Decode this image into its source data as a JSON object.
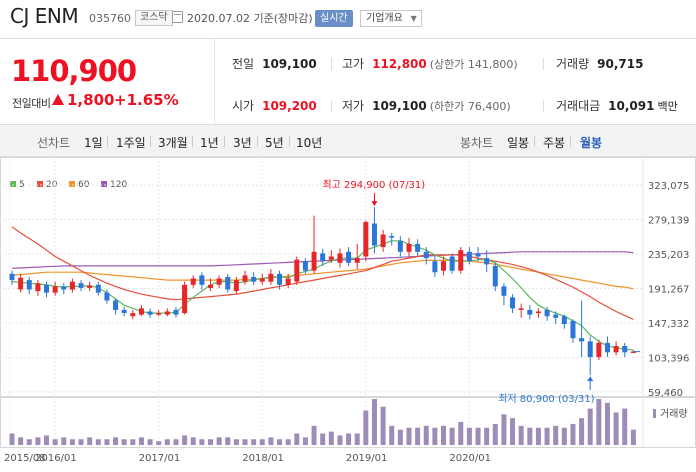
{
  "header": {
    "name": "CJ ENM",
    "code": "035760",
    "market": "코스닥",
    "date": "2020.07.02 기준(장마감)",
    "realtime": "실시간",
    "overview": "기업개요"
  },
  "price": {
    "current": "110,900",
    "change_label": "전일대비",
    "change": "1,800",
    "percent": "+1.65%",
    "prev_label": "전일",
    "prev": "109,100",
    "high_label": "고가",
    "high": "112,800",
    "upper_limit": "(상한가 141,800)",
    "volume_label": "거래량",
    "volume": "90,715",
    "open_label": "시가",
    "open": "109,200",
    "low_label": "저가",
    "low": "109,100",
    "lower_limit": "(하한가 76,400)",
    "amount_label": "거래대금",
    "amount": "10,091",
    "amount_unit": "백만"
  },
  "tabs": {
    "line_label": "선차트",
    "line_periods": [
      "1일",
      "1주일",
      "3개월",
      "1년",
      "3년",
      "5년",
      "10년"
    ],
    "candle_label": "봉차트",
    "candle_periods": [
      "일봉",
      "주봉",
      "월봉"
    ],
    "active_candle": "월봉"
  },
  "colors": {
    "up": "#e8262a",
    "down": "#2b76d6",
    "ma5": "#5cb85c",
    "ma20": "#e55039",
    "ma60": "#f0932b",
    "ma120": "#9b59b6"
  },
  "chart_data": {
    "type": "candlestick",
    "legend": [
      "5",
      "20",
      "60",
      "120"
    ],
    "y_ticks": [
      "323,075",
      "279,139",
      "235,203",
      "191,267",
      "147,332",
      "103,396",
      "59,460"
    ],
    "x_ticks": [
      "2015/08",
      "2016/01",
      "2017/01",
      "2018/01",
      "2019/01",
      "2020/01"
    ],
    "max_annotation": "최고 294,900 (07/31)",
    "min_annotation": "최저 80,900 (03/31)",
    "volume_label": "거래량",
    "candles": [
      {
        "o": 210000,
        "c": 202000,
        "h": 214000,
        "l": 196000
      },
      {
        "o": 190000,
        "c": 205000,
        "h": 210000,
        "l": 186000
      },
      {
        "o": 202000,
        "c": 190000,
        "h": 206000,
        "l": 184000
      },
      {
        "o": 188000,
        "c": 198000,
        "h": 202000,
        "l": 182000
      },
      {
        "o": 196000,
        "c": 186000,
        "h": 200000,
        "l": 180000
      },
      {
        "o": 186000,
        "c": 194000,
        "h": 200000,
        "l": 182000
      },
      {
        "o": 194000,
        "c": 190000,
        "h": 198000,
        "l": 184000
      },
      {
        "o": 190000,
        "c": 200000,
        "h": 204000,
        "l": 186000
      },
      {
        "o": 198000,
        "c": 192000,
        "h": 202000,
        "l": 188000
      },
      {
        "o": 192000,
        "c": 195000,
        "h": 200000,
        "l": 188000
      },
      {
        "o": 196000,
        "c": 186000,
        "h": 200000,
        "l": 182000
      },
      {
        "o": 186000,
        "c": 176000,
        "h": 190000,
        "l": 172000
      },
      {
        "o": 176000,
        "c": 164000,
        "h": 178000,
        "l": 158000
      },
      {
        "o": 164000,
        "c": 160000,
        "h": 168000,
        "l": 156000
      },
      {
        "o": 156000,
        "c": 160000,
        "h": 164000,
        "l": 152000
      },
      {
        "o": 158000,
        "c": 166000,
        "h": 170000,
        "l": 156000
      },
      {
        "o": 162000,
        "c": 158000,
        "h": 166000,
        "l": 154000
      },
      {
        "o": 158000,
        "c": 160000,
        "h": 164000,
        "l": 156000
      },
      {
        "o": 158000,
        "c": 162000,
        "h": 166000,
        "l": 156000
      },
      {
        "o": 164000,
        "c": 158000,
        "h": 168000,
        "l": 154000
      },
      {
        "o": 160000,
        "c": 196000,
        "h": 200000,
        "l": 158000
      },
      {
        "o": 196000,
        "c": 204000,
        "h": 208000,
        "l": 192000
      },
      {
        "o": 208000,
        "c": 196000,
        "h": 212000,
        "l": 190000
      },
      {
        "o": 192000,
        "c": 196000,
        "h": 204000,
        "l": 188000
      },
      {
        "o": 196000,
        "c": 204000,
        "h": 208000,
        "l": 192000
      },
      {
        "o": 206000,
        "c": 190000,
        "h": 210000,
        "l": 186000
      },
      {
        "o": 188000,
        "c": 202000,
        "h": 206000,
        "l": 184000
      },
      {
        "o": 200000,
        "c": 208000,
        "h": 214000,
        "l": 196000
      },
      {
        "o": 206000,
        "c": 200000,
        "h": 212000,
        "l": 196000
      },
      {
        "o": 200000,
        "c": 204000,
        "h": 210000,
        "l": 196000
      },
      {
        "o": 200000,
        "c": 210000,
        "h": 216000,
        "l": 196000
      },
      {
        "o": 210000,
        "c": 196000,
        "h": 214000,
        "l": 190000
      },
      {
        "o": 196000,
        "c": 204000,
        "h": 210000,
        "l": 192000
      },
      {
        "o": 200000,
        "c": 228000,
        "h": 232000,
        "l": 196000
      },
      {
        "o": 226000,
        "c": 214000,
        "h": 230000,
        "l": 210000
      },
      {
        "o": 214000,
        "c": 238000,
        "h": 284000,
        "l": 210000
      },
      {
        "o": 236000,
        "c": 226000,
        "h": 242000,
        "l": 220000
      },
      {
        "o": 228000,
        "c": 232000,
        "h": 240000,
        "l": 224000
      },
      {
        "o": 224000,
        "c": 236000,
        "h": 242000,
        "l": 218000
      },
      {
        "o": 238000,
        "c": 224000,
        "h": 244000,
        "l": 220000
      },
      {
        "o": 224000,
        "c": 230000,
        "h": 248000,
        "l": 216000
      },
      {
        "o": 232000,
        "c": 276000,
        "h": 278000,
        "l": 226000
      },
      {
        "o": 274000,
        "c": 246000,
        "h": 294900,
        "l": 236000
      },
      {
        "o": 244000,
        "c": 260000,
        "h": 266000,
        "l": 238000
      },
      {
        "o": 258000,
        "c": 256000,
        "h": 262000,
        "l": 246000
      },
      {
        "o": 252000,
        "c": 238000,
        "h": 258000,
        "l": 232000
      },
      {
        "o": 238000,
        "c": 248000,
        "h": 256000,
        "l": 232000
      },
      {
        "o": 248000,
        "c": 238000,
        "h": 254000,
        "l": 232000
      },
      {
        "o": 238000,
        "c": 230000,
        "h": 244000,
        "l": 222000
      },
      {
        "o": 226000,
        "c": 212000,
        "h": 232000,
        "l": 206000
      },
      {
        "o": 214000,
        "c": 226000,
        "h": 232000,
        "l": 208000
      },
      {
        "o": 232000,
        "c": 214000,
        "h": 236000,
        "l": 210000
      },
      {
        "o": 214000,
        "c": 240000,
        "h": 244000,
        "l": 210000
      },
      {
        "o": 238000,
        "c": 226000,
        "h": 244000,
        "l": 222000
      },
      {
        "o": 236000,
        "c": 232000,
        "h": 244000,
        "l": 226000
      },
      {
        "o": 230000,
        "c": 222000,
        "h": 240000,
        "l": 212000
      },
      {
        "o": 220000,
        "c": 194000,
        "h": 224000,
        "l": 188000
      },
      {
        "o": 194000,
        "c": 182000,
        "h": 198000,
        "l": 170000
      },
      {
        "o": 180000,
        "c": 166000,
        "h": 184000,
        "l": 160000
      },
      {
        "o": 164000,
        "c": 166000,
        "h": 172000,
        "l": 154000
      },
      {
        "o": 164000,
        "c": 158000,
        "h": 170000,
        "l": 152000
      },
      {
        "o": 160000,
        "c": 162000,
        "h": 166000,
        "l": 154000
      },
      {
        "o": 164000,
        "c": 156000,
        "h": 168000,
        "l": 150000
      },
      {
        "o": 158000,
        "c": 154000,
        "h": 162000,
        "l": 146000
      },
      {
        "o": 156000,
        "c": 146000,
        "h": 158000,
        "l": 140000
      },
      {
        "o": 150000,
        "c": 128000,
        "h": 152000,
        "l": 122000
      },
      {
        "o": 128000,
        "c": 124000,
        "h": 176000,
        "l": 104000
      },
      {
        "o": 124000,
        "c": 104000,
        "h": 130000,
        "l": 80900
      },
      {
        "o": 104000,
        "c": 122000,
        "h": 126000,
        "l": 100000
      },
      {
        "o": 122000,
        "c": 110000,
        "h": 130000,
        "l": 104000
      },
      {
        "o": 110000,
        "c": 118000,
        "h": 124000,
        "l": 106000
      },
      {
        "o": 118000,
        "c": 110000,
        "h": 122000,
        "l": 104000
      },
      {
        "o": 109200,
        "c": 110900,
        "h": 112800,
        "l": 109100
      }
    ],
    "ma5": [
      200000,
      199000,
      198000,
      197000,
      196000,
      194000,
      193000,
      194000,
      194000,
      195000,
      192000,
      186000,
      178000,
      170000,
      166000,
      162000,
      160000,
      160000,
      160000,
      161000,
      171000,
      180000,
      188000,
      196000,
      200000,
      200000,
      198000,
      200000,
      202000,
      204000,
      206000,
      206000,
      205000,
      210000,
      213000,
      216000,
      222000,
      226000,
      230000,
      230000,
      230000,
      240000,
      244000,
      248000,
      252000,
      252000,
      248000,
      244000,
      240000,
      234000,
      230000,
      226000,
      226000,
      226000,
      228000,
      228000,
      224000,
      214000,
      204000,
      192000,
      180000,
      170000,
      164000,
      160000,
      156000,
      150000,
      144000,
      132000,
      124000,
      118000,
      116000,
      114000,
      113000
    ],
    "ma20": [
      270000,
      262000,
      255000,
      248000,
      240000,
      232000,
      226000,
      220000,
      214000,
      208000,
      203000,
      198000,
      194000,
      190000,
      187000,
      184000,
      182000,
      180000,
      178000,
      177000,
      178000,
      179000,
      180000,
      181000,
      182000,
      183000,
      184000,
      186000,
      188000,
      190000,
      192000,
      194000,
      196000,
      198000,
      200000,
      202000,
      204000,
      206000,
      208000,
      210000,
      212000,
      214000,
      218000,
      222000,
      226000,
      228000,
      230000,
      232000,
      234000,
      234000,
      234000,
      234000,
      234000,
      232000,
      230000,
      228000,
      226000,
      224000,
      222000,
      219000,
      216000,
      212000,
      208000,
      203000,
      198000,
      193000,
      187000,
      181000,
      174000,
      168000,
      162000,
      157000,
      152000
    ],
    "ma60": [
      208000,
      209000,
      210000,
      211000,
      212000,
      212000,
      212000,
      212000,
      212000,
      211000,
      210000,
      209000,
      208000,
      207000,
      206000,
      205000,
      204000,
      203000,
      202000,
      202000,
      202000,
      202000,
      202000,
      202000,
      202000,
      202000,
      202000,
      203000,
      203000,
      204000,
      205000,
      206000,
      207000,
      208000,
      209000,
      210000,
      211000,
      212000,
      213000,
      214000,
      215000,
      216000,
      218000,
      220000,
      222000,
      224000,
      225000,
      226000,
      227000,
      227000,
      227000,
      227000,
      227000,
      226000,
      225000,
      224000,
      222000,
      220000,
      218000,
      216000,
      214000,
      212000,
      210000,
      208000,
      206000,
      204000,
      202000,
      200000,
      198000,
      196000,
      194000,
      193000,
      191000
    ],
    "ma120": [
      217000,
      217500,
      218000,
      218500,
      219000,
      219500,
      220000,
      220000,
      220000,
      220000,
      220000,
      220000,
      220000,
      220000,
      220000,
      220000,
      220000,
      220000,
      220000,
      220000,
      220000,
      220000,
      220000,
      220000,
      220500,
      221000,
      221500,
      222000,
      222500,
      223000,
      223500,
      224000,
      224500,
      225000,
      225500,
      226000,
      226500,
      227000,
      227500,
      228000,
      228500,
      229000,
      229500,
      230000,
      230500,
      231000,
      231500,
      232000,
      232500,
      233000,
      233500,
      234000,
      234500,
      235000,
      235500,
      236000,
      236500,
      237000,
      237500,
      238000,
      238000,
      238000,
      238000,
      238000,
      238000,
      238000,
      238000,
      238000,
      238000,
      238000,
      238000,
      238000,
      237000
    ],
    "volumes": [
      6,
      4,
      3,
      4,
      5,
      3,
      4,
      3,
      3,
      4,
      3,
      3,
      4,
      3,
      3,
      4,
      3,
      2,
      3,
      3,
      5,
      4,
      3,
      3,
      4,
      4,
      3,
      3,
      3,
      3,
      4,
      3,
      3,
      6,
      4,
      10,
      6,
      7,
      5,
      6,
      6,
      18,
      24,
      20,
      10,
      8,
      9,
      9,
      10,
      9,
      10,
      9,
      12,
      9,
      9,
      9,
      11,
      16,
      14,
      10,
      9,
      9,
      9,
      10,
      9,
      11,
      14,
      19,
      24,
      22,
      17,
      19,
      8
    ]
  }
}
